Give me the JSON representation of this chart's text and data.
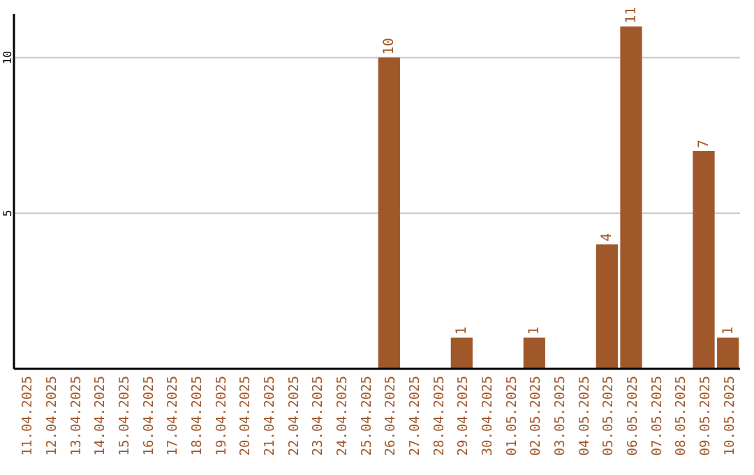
{
  "chart_data": {
    "type": "bar",
    "categories": [
      "11.04.2025",
      "12.04.2025",
      "13.04.2025",
      "14.04.2025",
      "15.04.2025",
      "16.04.2025",
      "17.04.2025",
      "18.04.2025",
      "19.04.2025",
      "20.04.2025",
      "21.04.2025",
      "22.04.2025",
      "23.04.2025",
      "24.04.2025",
      "25.04.2025",
      "26.04.2025",
      "27.04.2025",
      "28.04.2025",
      "29.04.2025",
      "30.04.2025",
      "01.05.2025",
      "02.05.2025",
      "03.05.2025",
      "04.05.2025",
      "05.05.2025",
      "06.05.2025",
      "07.05.2025",
      "08.05.2025",
      "09.05.2025",
      "10.05.2025"
    ],
    "values": [
      0,
      0,
      0,
      0,
      0,
      0,
      0,
      0,
      0,
      0,
      0,
      0,
      0,
      0,
      0,
      10,
      0,
      0,
      1,
      0,
      0,
      1,
      0,
      0,
      4,
      11,
      0,
      0,
      7,
      1
    ],
    "value_labels": [
      null,
      null,
      null,
      null,
      null,
      null,
      null,
      null,
      null,
      null,
      null,
      null,
      null,
      null,
      null,
      "10",
      null,
      null,
      "1",
      null,
      null,
      "1",
      null,
      null,
      "4",
      "11",
      null,
      null,
      "7",
      "1"
    ],
    "color": "#a0572a",
    "ylim": [
      0,
      11.4
    ],
    "yticks": [
      5,
      10
    ],
    "grid": "y"
  }
}
